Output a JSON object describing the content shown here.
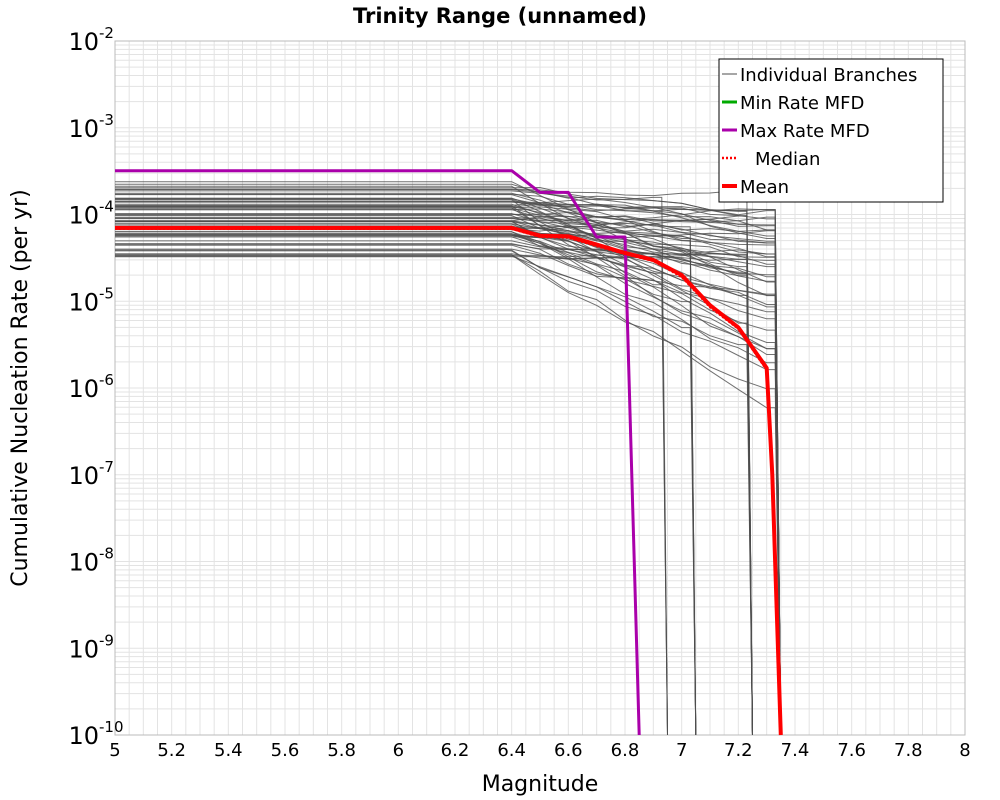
{
  "chart_data": {
    "type": "line",
    "title": "Trinity Range (unnamed)",
    "xlabel": "Magnitude",
    "ylabel": "Cumulative Nucleation Rate (per yr)",
    "xlim": [
      5,
      8
    ],
    "ylim": [
      1e-10,
      0.01
    ],
    "y_scale": "log",
    "grid": true,
    "legend_position": "top-right",
    "x_ticks": [
      "5",
      "5.2",
      "5.4",
      "5.6",
      "5.8",
      "6",
      "6.2",
      "6.4",
      "6.6",
      "6.8",
      "7",
      "7.2",
      "7.4",
      "7.6",
      "7.8",
      "8"
    ],
    "y_ticks": [
      {
        "base": "10",
        "exp": "-10",
        "value": 1e-10
      },
      {
        "base": "10",
        "exp": "-9",
        "value": 1e-09
      },
      {
        "base": "10",
        "exp": "-8",
        "value": 1e-08
      },
      {
        "base": "10",
        "exp": "-7",
        "value": 1e-07
      },
      {
        "base": "10",
        "exp": "-6",
        "value": 1e-06
      },
      {
        "base": "10",
        "exp": "-5",
        "value": 1e-05
      },
      {
        "base": "10",
        "exp": "-4",
        "value": 0.0001
      },
      {
        "base": "10",
        "exp": "-3",
        "value": 0.001
      },
      {
        "base": "10",
        "exp": "-2",
        "value": 0.01
      }
    ],
    "colors": {
      "branches": "#4d4d4d",
      "min_rate": "#00aa00",
      "max_rate": "#aa00aa",
      "median": "#ff0000",
      "mean": "#ff0000",
      "grid": "#e3e3e3"
    },
    "legend": [
      {
        "label": "Individual Branches",
        "color": "#4d4d4d",
        "style": "thin"
      },
      {
        "label": "Min Rate MFD",
        "color": "#00aa00",
        "style": "solid"
      },
      {
        "label": "Max Rate MFD",
        "color": "#aa00aa",
        "style": "solid"
      },
      {
        "label": "Median",
        "color": "#ff0000",
        "style": "dotted"
      },
      {
        "label": "Mean",
        "color": "#ff0000",
        "style": "thick"
      }
    ],
    "series": [
      {
        "name": "Max Rate MFD",
        "x": [
          5.0,
          6.4,
          6.5,
          6.6,
          6.7,
          6.8,
          6.85
        ],
        "y": [
          0.00032,
          0.00032,
          0.00018,
          0.00018,
          5.5e-05,
          5.5e-05,
          1e-10
        ]
      },
      {
        "name": "Mean",
        "x": [
          5.0,
          6.4,
          6.5,
          6.6,
          6.7,
          6.8,
          6.9,
          7.0,
          7.1,
          7.2,
          7.3,
          7.32,
          7.35
        ],
        "y": [
          7e-05,
          7e-05,
          5.7e-05,
          5.6e-05,
          4.5e-05,
          3.6e-05,
          3e-05,
          2e-05,
          9e-06,
          5e-06,
          1.7e-06,
          1e-07,
          1e-10
        ]
      },
      {
        "name": "Median",
        "x": [
          5.0,
          6.4,
          6.5,
          6.6,
          6.7,
          6.8,
          6.9,
          7.0,
          7.1,
          7.2,
          7.3,
          7.32,
          7.35
        ],
        "y": [
          6.8e-05,
          6.8e-05,
          5.5e-05,
          5.4e-05,
          4.3e-05,
          3.5e-05,
          2.9e-05,
          1.9e-05,
          8.5e-06,
          4.8e-06,
          1.6e-06,
          1e-07,
          1e-10
        ]
      }
    ],
    "individual_branches": {
      "count": 70,
      "rate_range_m5": [
        3.2e-05,
        0.00024
      ],
      "final_drop_magnitudes": [
        6.95,
        7.05,
        7.25,
        7.35
      ]
    }
  }
}
